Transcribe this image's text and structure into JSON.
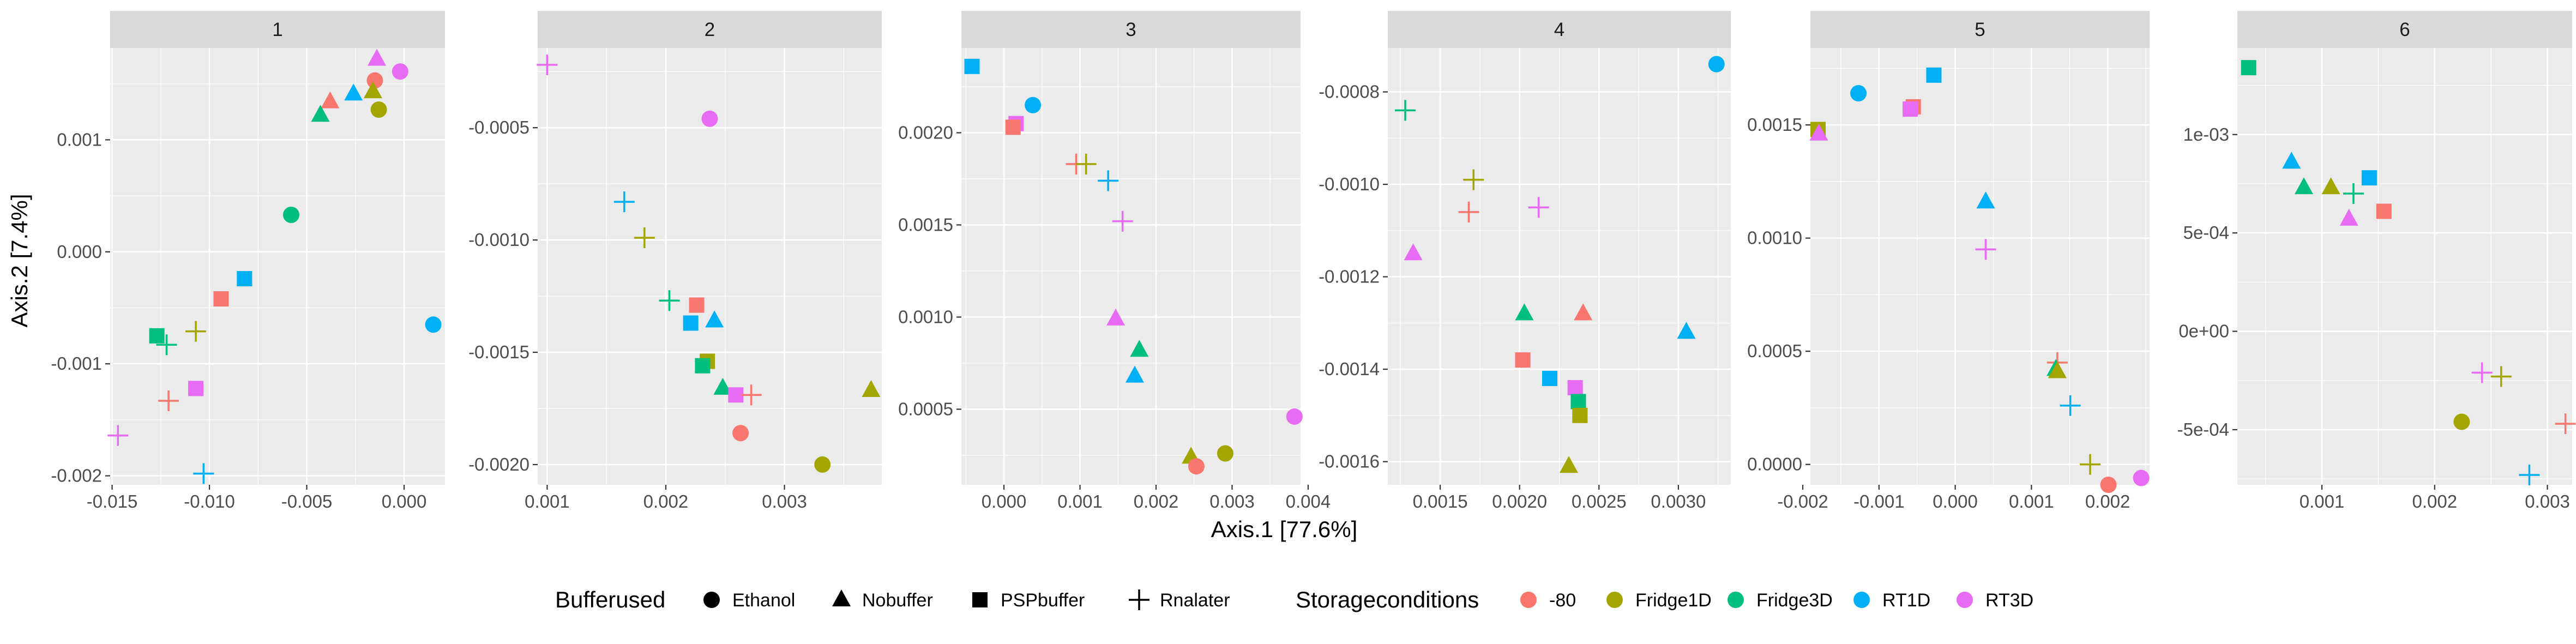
{
  "chart_data": {
    "type": "scatter",
    "xlabel": "Axis.1   [77.6%]",
    "ylabel": "Axis.2   [7.4%]",
    "grid": true,
    "legend_position": "bottom",
    "legends": {
      "shape": {
        "title": "Bufferused",
        "items": [
          {
            "label": "Ethanol",
            "shape": "circle"
          },
          {
            "label": "Nobuffer",
            "shape": "triangle"
          },
          {
            "label": "PSPbuffer",
            "shape": "square"
          },
          {
            "label": "Rnalater",
            "shape": "plus"
          }
        ]
      },
      "color": {
        "title": "Storageconditions",
        "items": [
          {
            "label": "-80",
            "color": "#F8766D"
          },
          {
            "label": "Fridge1D",
            "color": "#A3A500"
          },
          {
            "label": "Fridge3D",
            "color": "#00BF7D"
          },
          {
            "label": "RT1D",
            "color": "#00B0F6"
          },
          {
            "label": "RT3D",
            "color": "#E76BF3"
          }
        ]
      }
    },
    "colors": {
      "-80": "#F8766D",
      "Fridge1D": "#A3A500",
      "Fridge3D": "#00BF7D",
      "RT1D": "#00B0F6",
      "RT3D": "#E76BF3"
    },
    "panels": [
      {
        "label": "1",
        "xlim": [
          -0.0151,
          0.0021
        ],
        "ylim": [
          -0.00208,
          0.00182
        ],
        "xticks": [
          -0.015,
          -0.01,
          -0.005,
          0.0
        ],
        "xtick_labels": [
          "-0.015",
          "-0.010",
          "-0.005",
          "0.000"
        ],
        "yticks": [
          -0.002,
          -0.001,
          0.0,
          0.001
        ],
        "ytick_labels": [
          "-0.002",
          "-0.001",
          "0.000",
          "0.001"
        ],
        "points": [
          {
            "x": -0.0014,
            "y": 0.00172,
            "shape": "Nobuffer",
            "storage": "RT3D"
          },
          {
            "x": -0.0002,
            "y": 0.00161,
            "shape": "Ethanol",
            "storage": "RT3D"
          },
          {
            "x": -0.0015,
            "y": 0.00153,
            "shape": "Ethanol",
            "storage": "-80"
          },
          {
            "x": -0.0016,
            "y": 0.00143,
            "shape": "Nobuffer",
            "storage": "Fridge1D"
          },
          {
            "x": -0.0026,
            "y": 0.00141,
            "shape": "Nobuffer",
            "storage": "RT1D"
          },
          {
            "x": -0.0038,
            "y": 0.00134,
            "shape": "Nobuffer",
            "storage": "-80"
          },
          {
            "x": -0.0013,
            "y": 0.00127,
            "shape": "Ethanol",
            "storage": "Fridge1D"
          },
          {
            "x": -0.0043,
            "y": 0.00122,
            "shape": "Nobuffer",
            "storage": "Fridge3D"
          },
          {
            "x": -0.0058,
            "y": 0.00033,
            "shape": "Ethanol",
            "storage": "Fridge3D"
          },
          {
            "x": -0.0082,
            "y": -0.00024,
            "shape": "PSPbuffer",
            "storage": "RT1D"
          },
          {
            "x": -0.0094,
            "y": -0.00042,
            "shape": "PSPbuffer",
            "storage": "-80"
          },
          {
            "x": 0.0015,
            "y": -0.00065,
            "shape": "Ethanol",
            "storage": "RT1D"
          },
          {
            "x": -0.0107,
            "y": -0.00071,
            "shape": "Rnalater",
            "storage": "Fridge1D"
          },
          {
            "x": -0.0127,
            "y": -0.00075,
            "shape": "PSPbuffer",
            "storage": "Fridge3D"
          },
          {
            "x": -0.0122,
            "y": -0.00083,
            "shape": "Rnalater",
            "storage": "Fridge3D"
          },
          {
            "x": -0.0107,
            "y": -0.00122,
            "shape": "PSPbuffer",
            "storage": "RT3D"
          },
          {
            "x": -0.0121,
            "y": -0.00133,
            "shape": "Rnalater",
            "storage": "-80"
          },
          {
            "x": -0.0147,
            "y": -0.00164,
            "shape": "Rnalater",
            "storage": "RT3D"
          },
          {
            "x": -0.0103,
            "y": -0.00198,
            "shape": "Rnalater",
            "storage": "RT1D"
          }
        ]
      },
      {
        "label": "2",
        "xlim": [
          0.00092,
          0.00382
        ],
        "ylim": [
          -0.00209,
          -0.000145
        ],
        "xticks": [
          0.001,
          0.002,
          0.003
        ],
        "xtick_labels": [
          "0.001",
          "0.002",
          "0.003"
        ],
        "yticks": [
          -0.002,
          -0.0015,
          -0.001,
          -0.0005
        ],
        "ytick_labels": [
          "-0.0020",
          "-0.0015",
          "-0.0010",
          "-0.0005"
        ],
        "points": [
          {
            "x": 0.001,
            "y": -0.00022,
            "shape": "Rnalater",
            "storage": "RT3D"
          },
          {
            "x": 0.00237,
            "y": -0.00046,
            "shape": "Ethanol",
            "storage": "RT3D"
          },
          {
            "x": 0.00165,
            "y": -0.00083,
            "shape": "Rnalater",
            "storage": "RT1D"
          },
          {
            "x": 0.00182,
            "y": -0.00099,
            "shape": "Rnalater",
            "storage": "Fridge1D"
          },
          {
            "x": 0.00203,
            "y": -0.00127,
            "shape": "Rnalater",
            "storage": "Fridge3D"
          },
          {
            "x": 0.00226,
            "y": -0.00129,
            "shape": "PSPbuffer",
            "storage": "-80"
          },
          {
            "x": 0.00241,
            "y": -0.00136,
            "shape": "Nobuffer",
            "storage": "RT1D"
          },
          {
            "x": 0.00221,
            "y": -0.00137,
            "shape": "PSPbuffer",
            "storage": "RT1D"
          },
          {
            "x": 0.00235,
            "y": -0.00154,
            "shape": "PSPbuffer",
            "storage": "Fridge1D"
          },
          {
            "x": 0.00231,
            "y": -0.00156,
            "shape": "PSPbuffer",
            "storage": "Fridge3D"
          },
          {
            "x": 0.00248,
            "y": -0.00166,
            "shape": "Nobuffer",
            "storage": "Fridge3D"
          },
          {
            "x": 0.00259,
            "y": -0.00169,
            "shape": "PSPbuffer",
            "storage": "RT3D"
          },
          {
            "x": 0.00272,
            "y": -0.00169,
            "shape": "Rnalater",
            "storage": "-80"
          },
          {
            "x": 0.00373,
            "y": -0.00167,
            "shape": "Nobuffer",
            "storage": "Fridge1D"
          },
          {
            "x": 0.00263,
            "y": -0.00186,
            "shape": "Ethanol",
            "storage": "-80"
          },
          {
            "x": 0.00332,
            "y": -0.002,
            "shape": "Ethanol",
            "storage": "Fridge1D"
          }
        ]
      },
      {
        "label": "3",
        "xlim": [
          -0.00056,
          0.0039
        ],
        "ylim": [
          9e-05,
          0.00246
        ],
        "xticks": [
          0.0,
          0.001,
          0.002,
          0.003,
          0.004
        ],
        "xtick_labels": [
          "0.000",
          "0.001",
          "0.002",
          "0.003",
          "0.004"
        ],
        "yticks": [
          0.0005,
          0.001,
          0.0015,
          0.002
        ],
        "ytick_labels": [
          "0.0005",
          "0.0010",
          "0.0015",
          "0.0020"
        ],
        "points": [
          {
            "x": -0.00042,
            "y": 0.00236,
            "shape": "PSPbuffer",
            "storage": "RT1D"
          },
          {
            "x": 0.00038,
            "y": 0.00215,
            "shape": "Ethanol",
            "storage": "RT1D"
          },
          {
            "x": 0.00016,
            "y": 0.00205,
            "shape": "PSPbuffer",
            "storage": "RT3D"
          },
          {
            "x": 0.00012,
            "y": 0.00203,
            "shape": "PSPbuffer",
            "storage": "-80"
          },
          {
            "x": 0.00095,
            "y": 0.00183,
            "shape": "Rnalater",
            "storage": "-80"
          },
          {
            "x": 0.00108,
            "y": 0.00183,
            "shape": "Rnalater",
            "storage": "Fridge1D"
          },
          {
            "x": 0.00137,
            "y": 0.00174,
            "shape": "Rnalater",
            "storage": "RT1D"
          },
          {
            "x": 0.00156,
            "y": 0.00152,
            "shape": "Rnalater",
            "storage": "RT3D"
          },
          {
            "x": 0.00147,
            "y": 0.00099,
            "shape": "Nobuffer",
            "storage": "RT3D"
          },
          {
            "x": 0.00178,
            "y": 0.00082,
            "shape": "Nobuffer",
            "storage": "Fridge3D"
          },
          {
            "x": 0.00172,
            "y": 0.00068,
            "shape": "Nobuffer",
            "storage": "RT1D"
          },
          {
            "x": 0.00382,
            "y": 0.00046,
            "shape": "Ethanol",
            "storage": "RT3D"
          },
          {
            "x": 0.00291,
            "y": 0.00026,
            "shape": "Ethanol",
            "storage": "Fridge1D"
          },
          {
            "x": 0.00246,
            "y": 0.00024,
            "shape": "Nobuffer",
            "storage": "Fridge1D"
          },
          {
            "x": 0.00253,
            "y": 0.00019,
            "shape": "Ethanol",
            "storage": "-80"
          }
        ]
      },
      {
        "label": "4",
        "xlim": [
          0.00117,
          0.00333
        ],
        "ylim": [
          -0.00165,
          -0.000705
        ],
        "xticks": [
          0.0015,
          0.002,
          0.0025,
          0.003
        ],
        "xtick_labels": [
          "0.0015",
          "0.0020",
          "0.0025",
          "0.0030"
        ],
        "yticks": [
          -0.0016,
          -0.0014,
          -0.0012,
          -0.001,
          -0.0008
        ],
        "ytick_labels": [
          "-0.0016",
          "-0.0014",
          "-0.0012",
          "-0.0010",
          "-0.0008"
        ],
        "points": [
          {
            "x": 0.00324,
            "y": -0.00074,
            "shape": "Ethanol",
            "storage": "RT1D"
          },
          {
            "x": 0.00128,
            "y": -0.00084,
            "shape": "Rnalater",
            "storage": "Fridge3D"
          },
          {
            "x": 0.00171,
            "y": -0.00099,
            "shape": "Rnalater",
            "storage": "Fridge1D"
          },
          {
            "x": 0.00168,
            "y": -0.00106,
            "shape": "Rnalater",
            "storage": "-80"
          },
          {
            "x": 0.00212,
            "y": -0.00105,
            "shape": "Rnalater",
            "storage": "RT3D"
          },
          {
            "x": 0.00133,
            "y": -0.00115,
            "shape": "Nobuffer",
            "storage": "RT3D"
          },
          {
            "x": 0.00203,
            "y": -0.00128,
            "shape": "Nobuffer",
            "storage": "Fridge3D"
          },
          {
            "x": 0.0024,
            "y": -0.00128,
            "shape": "Nobuffer",
            "storage": "-80"
          },
          {
            "x": 0.00305,
            "y": -0.00132,
            "shape": "Nobuffer",
            "storage": "RT1D"
          },
          {
            "x": 0.00202,
            "y": -0.00138,
            "shape": "PSPbuffer",
            "storage": "-80"
          },
          {
            "x": 0.00219,
            "y": -0.00142,
            "shape": "PSPbuffer",
            "storage": "RT1D"
          },
          {
            "x": 0.00235,
            "y": -0.00144,
            "shape": "PSPbuffer",
            "storage": "RT3D"
          },
          {
            "x": 0.00237,
            "y": -0.00147,
            "shape": "PSPbuffer",
            "storage": "Fridge3D"
          },
          {
            "x": 0.00238,
            "y": -0.0015,
            "shape": "PSPbuffer",
            "storage": "Fridge1D"
          },
          {
            "x": 0.00231,
            "y": -0.00161,
            "shape": "Nobuffer",
            "storage": "Fridge1D"
          }
        ]
      },
      {
        "label": "5",
        "xlim": [
          -0.0019,
          0.00255
        ],
        "ylim": [
          -9e-05,
          0.00184
        ],
        "xticks": [
          -0.002,
          -0.001,
          0.0,
          0.001,
          0.002
        ],
        "xtick_labels": [
          "-0.002",
          "-0.001",
          "0.000",
          "0.001",
          "0.002"
        ],
        "yticks": [
          0.0,
          0.0005,
          0.001,
          0.0015
        ],
        "ytick_labels": [
          "0.0000",
          "0.0005",
          "0.0010",
          "0.0015"
        ],
        "points": [
          {
            "x": -0.00028,
            "y": 0.00172,
            "shape": "PSPbuffer",
            "storage": "RT1D"
          },
          {
            "x": -0.00127,
            "y": 0.00164,
            "shape": "Ethanol",
            "storage": "RT1D"
          },
          {
            "x": -0.00055,
            "y": 0.00158,
            "shape": "PSPbuffer",
            "storage": "-80"
          },
          {
            "x": -0.00059,
            "y": 0.00157,
            "shape": "PSPbuffer",
            "storage": "RT3D"
          },
          {
            "x": -0.0018,
            "y": 0.00148,
            "shape": "PSPbuffer",
            "storage": "Fridge1D"
          },
          {
            "x": -0.00179,
            "y": 0.00146,
            "shape": "Nobuffer",
            "storage": "RT3D"
          },
          {
            "x": 0.0004,
            "y": 0.00116,
            "shape": "Nobuffer",
            "storage": "RT1D"
          },
          {
            "x": 0.0004,
            "y": 0.00095,
            "shape": "Rnalater",
            "storage": "RT3D"
          },
          {
            "x": 0.00134,
            "y": 0.00045,
            "shape": "Rnalater",
            "storage": "-80"
          },
          {
            "x": 0.00132,
            "y": 0.00042,
            "shape": "Nobuffer",
            "storage": "Fridge3D"
          },
          {
            "x": 0.00134,
            "y": 0.00041,
            "shape": "Nobuffer",
            "storage": "Fridge1D"
          },
          {
            "x": 0.00151,
            "y": 0.00026,
            "shape": "Rnalater",
            "storage": "RT1D"
          },
          {
            "x": 0.00177,
            "y": 0.0,
            "shape": "Rnalater",
            "storage": "Fridge1D"
          },
          {
            "x": 0.00244,
            "y": -6e-05,
            "shape": "Ethanol",
            "storage": "RT3D"
          },
          {
            "x": 0.00201,
            "y": -9e-05,
            "shape": "Ethanol",
            "storage": "-80"
          }
        ]
      },
      {
        "label": "6",
        "xlim": [
          0.00025,
          0.00322
        ],
        "ylim": [
          -0.00078,
          0.00144
        ],
        "xticks": [
          0.001,
          0.002,
          0.003
        ],
        "xtick_labels": [
          "0.001",
          "0.002",
          "0.003"
        ],
        "yticks": [
          -0.0005,
          0.0,
          0.0005,
          0.001
        ],
        "ytick_labels": [
          "-5e-04",
          "0e+00",
          "5e-04",
          "1e-03"
        ],
        "points": [
          {
            "x": 0.00035,
            "y": 0.00134,
            "shape": "PSPbuffer",
            "storage": "Fridge3D"
          },
          {
            "x": 0.00073,
            "y": 0.00086,
            "shape": "Nobuffer",
            "storage": "RT1D"
          },
          {
            "x": 0.00142,
            "y": 0.00078,
            "shape": "PSPbuffer",
            "storage": "RT1D"
          },
          {
            "x": 0.00084,
            "y": 0.00073,
            "shape": "Nobuffer",
            "storage": "Fridge3D"
          },
          {
            "x": 0.00108,
            "y": 0.00073,
            "shape": "Nobuffer",
            "storage": "Fridge1D"
          },
          {
            "x": 0.00128,
            "y": 0.0007,
            "shape": "Rnalater",
            "storage": "Fridge3D"
          },
          {
            "x": 0.00155,
            "y": 0.00061,
            "shape": "PSPbuffer",
            "storage": "-80"
          },
          {
            "x": 0.00124,
            "y": 0.00057,
            "shape": "Nobuffer",
            "storage": "RT3D"
          },
          {
            "x": 0.00242,
            "y": -0.00021,
            "shape": "Rnalater",
            "storage": "RT3D"
          },
          {
            "x": 0.00259,
            "y": -0.00023,
            "shape": "Rnalater",
            "storage": "Fridge1D"
          },
          {
            "x": 0.00224,
            "y": -0.00046,
            "shape": "Ethanol",
            "storage": "Fridge1D"
          },
          {
            "x": 0.00316,
            "y": -0.00047,
            "shape": "Rnalater",
            "storage": "-80"
          },
          {
            "x": 0.00284,
            "y": -0.00073,
            "shape": "Rnalater",
            "storage": "RT1D"
          }
        ]
      }
    ]
  }
}
